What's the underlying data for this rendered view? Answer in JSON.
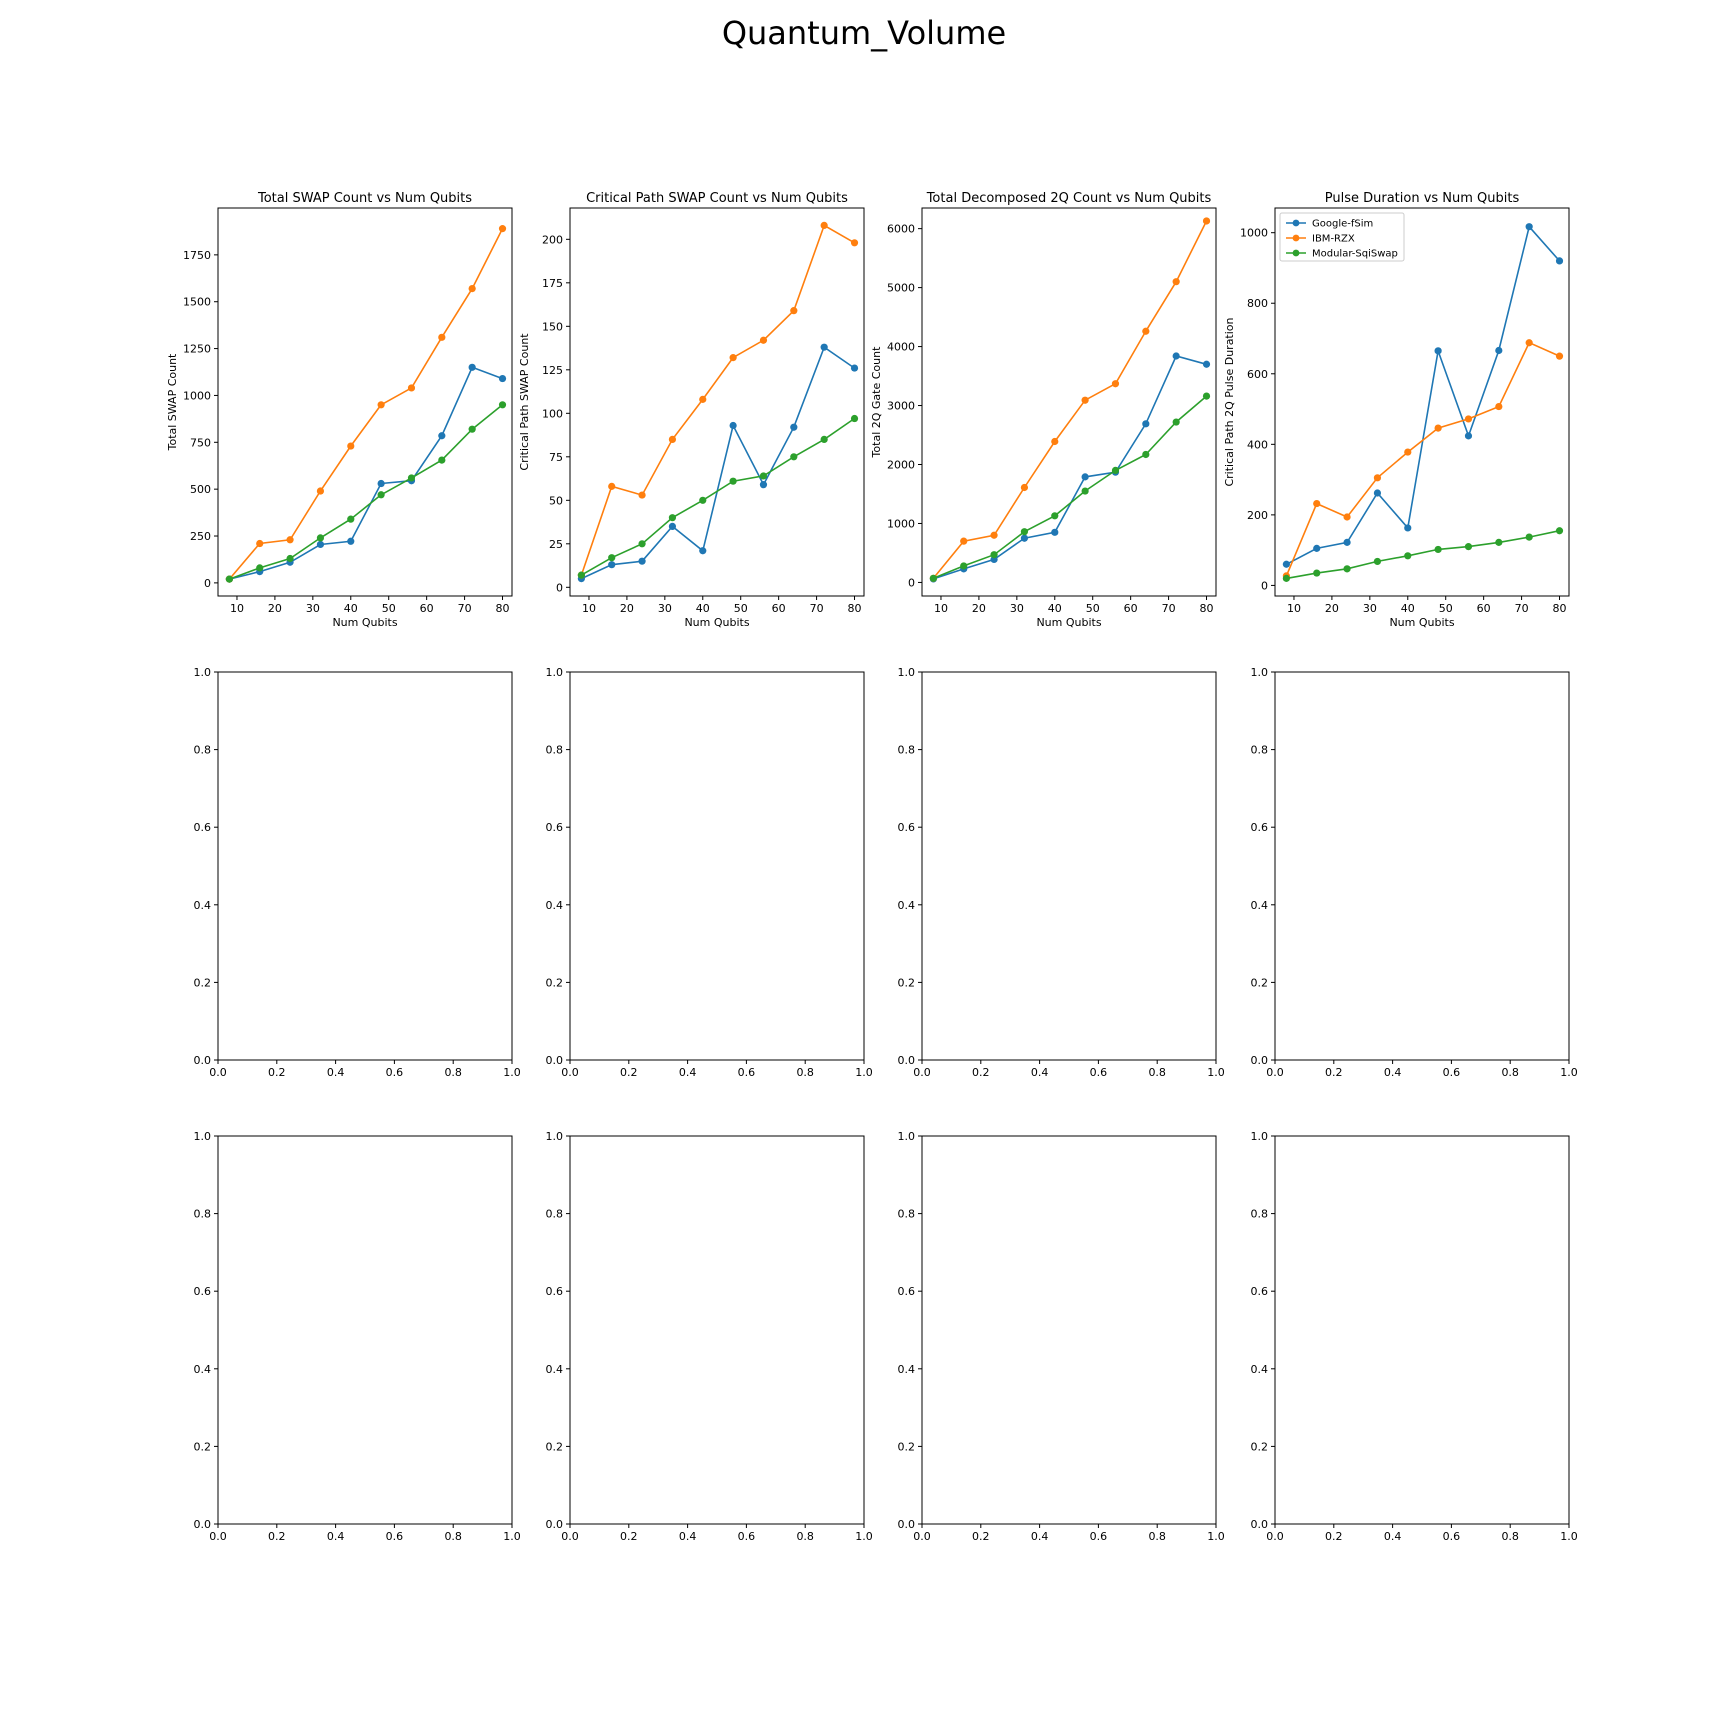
{
  "suptitle": "Quantum_Volume",
  "colors": {
    "Google-fSim": "#1f77b4",
    "IBM-RZX": "#ff7f0e",
    "Modular-SqiSwap": "#2ca02c"
  },
  "chart_data": [
    {
      "type": "line",
      "title": "Total SWAP Count vs Num Qubits",
      "xlabel": "Num Qubits",
      "ylabel": "Total SWAP Count",
      "xlim": [
        5,
        82.5
      ],
      "ylim": [
        -70,
        2000
      ],
      "xticks": [
        10,
        20,
        30,
        40,
        50,
        60,
        70,
        80
      ],
      "yticks": [
        0,
        250,
        500,
        750,
        1000,
        1250,
        1500,
        1750
      ],
      "x": [
        8,
        16,
        24,
        32,
        40,
        48,
        56,
        64,
        72,
        80
      ],
      "legend": false,
      "series": [
        {
          "name": "Google-fSim",
          "values": [
            20,
            60,
            110,
            205,
            222,
            530,
            545,
            785,
            1150,
            1090
          ]
        },
        {
          "name": "IBM-RZX",
          "values": [
            20,
            210,
            230,
            490,
            730,
            950,
            1040,
            1310,
            1570,
            1890
          ]
        },
        {
          "name": "Modular-SqiSwap",
          "values": [
            20,
            80,
            130,
            240,
            340,
            470,
            560,
            655,
            820,
            950
          ]
        }
      ]
    },
    {
      "type": "line",
      "title": "Critical Path SWAP Count vs Num Qubits",
      "xlabel": "Num Qubits",
      "ylabel": "Critical Path SWAP Count",
      "xlim": [
        5,
        82.5
      ],
      "ylim": [
        -5,
        218
      ],
      "xticks": [
        10,
        20,
        30,
        40,
        50,
        60,
        70,
        80
      ],
      "yticks": [
        0,
        25,
        50,
        75,
        100,
        125,
        150,
        175,
        200
      ],
      "x": [
        8,
        16,
        24,
        32,
        40,
        48,
        56,
        64,
        72,
        80
      ],
      "legend": false,
      "series": [
        {
          "name": "Google-fSim",
          "values": [
            5,
            13,
            15,
            35,
            21,
            93,
            59,
            92,
            138,
            126
          ]
        },
        {
          "name": "IBM-RZX",
          "values": [
            7,
            58,
            53,
            85,
            108,
            132,
            142,
            159,
            208,
            198
          ]
        },
        {
          "name": "Modular-SqiSwap",
          "values": [
            7,
            17,
            25,
            40,
            50,
            61,
            64,
            75,
            85,
            97
          ]
        }
      ]
    },
    {
      "type": "line",
      "title": "Total Decomposed 2Q Count vs Num Qubits",
      "xlabel": "Num Qubits",
      "ylabel": "Total 2Q Gate Count",
      "xlim": [
        5,
        82.5
      ],
      "ylim": [
        -230,
        6350
      ],
      "xticks": [
        10,
        20,
        30,
        40,
        50,
        60,
        70,
        80
      ],
      "yticks": [
        0,
        1000,
        2000,
        3000,
        4000,
        5000,
        6000
      ],
      "x": [
        8,
        16,
        24,
        32,
        40,
        48,
        56,
        64,
        72,
        80
      ],
      "legend": false,
      "series": [
        {
          "name": "Google-fSim",
          "values": [
            60,
            230,
            390,
            750,
            850,
            1790,
            1870,
            2690,
            3840,
            3700
          ]
        },
        {
          "name": "IBM-RZX",
          "values": [
            70,
            700,
            800,
            1610,
            2390,
            3090,
            3370,
            4260,
            5100,
            6130
          ]
        },
        {
          "name": "Modular-SqiSwap",
          "values": [
            70,
            280,
            470,
            860,
            1130,
            1550,
            1900,
            2170,
            2720,
            3160
          ]
        }
      ]
    },
    {
      "type": "line",
      "title": "Pulse Duration vs Num Qubits",
      "xlabel": "Num Qubits",
      "ylabel": "Critical Path 2Q Pulse Duration",
      "xlim": [
        5,
        82.5
      ],
      "ylim": [
        -30,
        1070
      ],
      "xticks": [
        10,
        20,
        30,
        40,
        50,
        60,
        70,
        80
      ],
      "yticks": [
        0,
        200,
        400,
        600,
        800,
        1000
      ],
      "x": [
        8,
        16,
        24,
        32,
        40,
        48,
        56,
        64,
        72,
        80
      ],
      "legend": true,
      "legend_loc": "upper left",
      "series": [
        {
          "name": "Google-fSim",
          "values": [
            60,
            105,
            122,
            262,
            163,
            665,
            424,
            666,
            1017,
            920
          ]
        },
        {
          "name": "IBM-RZX",
          "values": [
            27,
            232,
            194,
            305,
            378,
            446,
            472,
            507,
            688,
            650
          ]
        },
        {
          "name": "Modular-SqiSwap",
          "values": [
            20,
            35,
            47,
            68,
            84,
            102,
            110,
            122,
            137,
            155
          ]
        }
      ]
    },
    {
      "type": "line",
      "title": "",
      "xlabel": "",
      "ylabel": "",
      "xlim": [
        0,
        1
      ],
      "ylim": [
        0,
        1
      ],
      "xticks": [
        0,
        0.2,
        0.4,
        0.6,
        0.8,
        1
      ],
      "yticks": [
        0,
        0.2,
        0.4,
        0.6,
        0.8,
        1
      ],
      "tick_labels": [
        "0.0",
        "0.2",
        "0.4",
        "0.6",
        "0.8",
        "1.0"
      ],
      "series": []
    },
    {
      "type": "line",
      "title": "",
      "xlabel": "",
      "ylabel": "",
      "xlim": [
        0,
        1
      ],
      "ylim": [
        0,
        1
      ],
      "xticks": [
        0,
        0.2,
        0.4,
        0.6,
        0.8,
        1
      ],
      "yticks": [
        0,
        0.2,
        0.4,
        0.6,
        0.8,
        1
      ],
      "tick_labels": [
        "0.0",
        "0.2",
        "0.4",
        "0.6",
        "0.8",
        "1.0"
      ],
      "series": []
    },
    {
      "type": "line",
      "title": "",
      "xlabel": "",
      "ylabel": "",
      "xlim": [
        0,
        1
      ],
      "ylim": [
        0,
        1
      ],
      "xticks": [
        0,
        0.2,
        0.4,
        0.6,
        0.8,
        1
      ],
      "yticks": [
        0,
        0.2,
        0.4,
        0.6,
        0.8,
        1
      ],
      "tick_labels": [
        "0.0",
        "0.2",
        "0.4",
        "0.6",
        "0.8",
        "1.0"
      ],
      "series": []
    },
    {
      "type": "line",
      "title": "",
      "xlabel": "",
      "ylabel": "",
      "xlim": [
        0,
        1
      ],
      "ylim": [
        0,
        1
      ],
      "xticks": [
        0,
        0.2,
        0.4,
        0.6,
        0.8,
        1
      ],
      "yticks": [
        0,
        0.2,
        0.4,
        0.6,
        0.8,
        1
      ],
      "tick_labels": [
        "0.0",
        "0.2",
        "0.4",
        "0.6",
        "0.8",
        "1.0"
      ],
      "series": []
    },
    {
      "type": "line",
      "title": "",
      "xlabel": "",
      "ylabel": "",
      "xlim": [
        0,
        1
      ],
      "ylim": [
        0,
        1
      ],
      "xticks": [
        0,
        0.2,
        0.4,
        0.6,
        0.8,
        1
      ],
      "yticks": [
        0,
        0.2,
        0.4,
        0.6,
        0.8,
        1
      ],
      "tick_labels": [
        "0.0",
        "0.2",
        "0.4",
        "0.6",
        "0.8",
        "1.0"
      ],
      "series": []
    },
    {
      "type": "line",
      "title": "",
      "xlabel": "",
      "ylabel": "",
      "xlim": [
        0,
        1
      ],
      "ylim": [
        0,
        1
      ],
      "xticks": [
        0,
        0.2,
        0.4,
        0.6,
        0.8,
        1
      ],
      "yticks": [
        0,
        0.2,
        0.4,
        0.6,
        0.8,
        1
      ],
      "tick_labels": [
        "0.0",
        "0.2",
        "0.4",
        "0.6",
        "0.8",
        "1.0"
      ],
      "series": []
    },
    {
      "type": "line",
      "title": "",
      "xlabel": "",
      "ylabel": "",
      "xlim": [
        0,
        1
      ],
      "ylim": [
        0,
        1
      ],
      "xticks": [
        0,
        0.2,
        0.4,
        0.6,
        0.8,
        1
      ],
      "yticks": [
        0,
        0.2,
        0.4,
        0.6,
        0.8,
        1
      ],
      "tick_labels": [
        "0.0",
        "0.2",
        "0.4",
        "0.6",
        "0.8",
        "1.0"
      ],
      "series": []
    },
    {
      "type": "line",
      "title": "",
      "xlabel": "",
      "ylabel": "",
      "xlim": [
        0,
        1
      ],
      "ylim": [
        0,
        1
      ],
      "xticks": [
        0,
        0.2,
        0.4,
        0.6,
        0.8,
        1
      ],
      "yticks": [
        0,
        0.2,
        0.4,
        0.6,
        0.8,
        1
      ],
      "tick_labels": [
        "0.0",
        "0.2",
        "0.4",
        "0.6",
        "0.8",
        "1.0"
      ],
      "series": []
    }
  ]
}
